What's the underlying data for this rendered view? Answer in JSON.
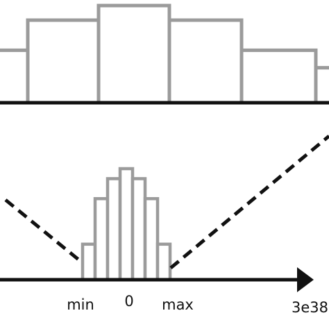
{
  "top_histogram": {
    "bins": [
      {
        "level": 0.54
      },
      {
        "level": 0.85
      },
      {
        "level": 1.0
      },
      {
        "level": 0.85
      },
      {
        "level": 0.54
      },
      {
        "level": 0.36
      }
    ]
  },
  "bottom_histogram": {
    "bins": [
      {
        "level": 0.32
      },
      {
        "level": 0.73
      },
      {
        "level": 0.91
      },
      {
        "level": 1.0
      },
      {
        "level": 0.91
      },
      {
        "level": 0.73
      },
      {
        "level": 0.32
      }
    ]
  },
  "axis": {
    "labels": {
      "min": "min",
      "zero": "0",
      "max": "max",
      "end": "3e38"
    }
  },
  "colors": {
    "bar_stroke": "#9b9b9b",
    "axis": "#111111",
    "background": "#ffffff"
  }
}
